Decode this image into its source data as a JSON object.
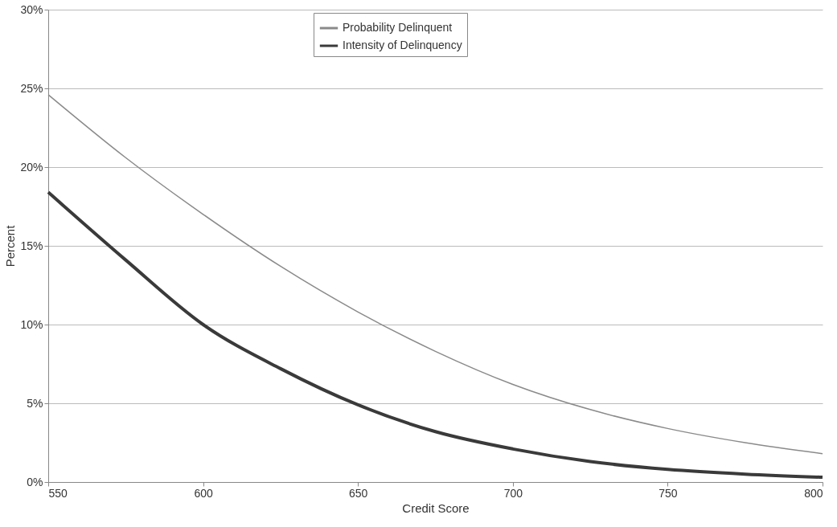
{
  "chart_data": {
    "type": "line",
    "xlabel": "Credit Score",
    "ylabel": "Percent",
    "x": [
      550,
      575,
      600,
      625,
      650,
      675,
      700,
      725,
      750,
      775,
      800
    ],
    "series": [
      {
        "name": "Probability Delinquent",
        "color": "#8a8a8a",
        "values": [
          24.6,
          20.6,
          17.0,
          13.7,
          10.8,
          8.3,
          6.2,
          4.6,
          3.4,
          2.5,
          1.8
        ]
      },
      {
        "name": "Intensity of Delinquency",
        "color": "#3a3a3a",
        "values": [
          18.4,
          14.1,
          10.0,
          7.2,
          4.9,
          3.2,
          2.1,
          1.3,
          0.8,
          0.5,
          0.3
        ]
      }
    ],
    "xlim": [
      550,
      800
    ],
    "xticks": [
      550,
      600,
      650,
      700,
      750,
      800
    ],
    "ylim": [
      0,
      30
    ],
    "yticks": [
      {
        "value": 0,
        "label": "0%"
      },
      {
        "value": 5,
        "label": "5%"
      },
      {
        "value": 10,
        "label": "10%"
      },
      {
        "value": 15,
        "label": "15%"
      },
      {
        "value": 20,
        "label": "20%"
      },
      {
        "value": 25,
        "label": "25%"
      },
      {
        "value": 30,
        "label": "30%"
      }
    ],
    "grid": "y",
    "legend": "top",
    "marker": "none",
    "line_style": "solid"
  }
}
